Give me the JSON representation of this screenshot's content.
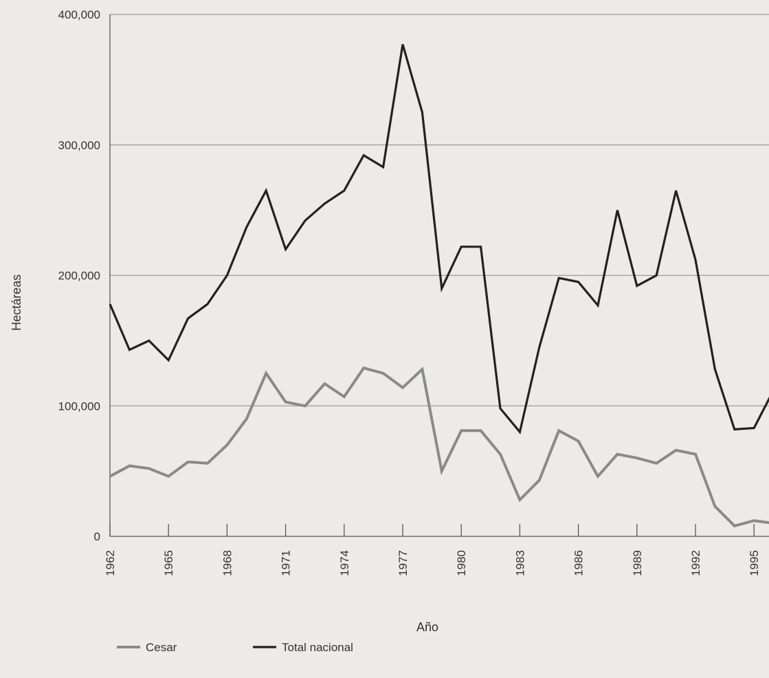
{
  "chart_data": {
    "type": "line",
    "xlabel": "Año",
    "ylabel": "Hectáreas",
    "ylim": [
      0,
      400000
    ],
    "grid": "horizontal",
    "legend_placement": "bottom-left",
    "y_ticks": [
      0,
      100000,
      200000,
      300000,
      400000
    ],
    "y_tick_labels": [
      "0",
      "100,000",
      "200,000",
      "300,000",
      "400,000"
    ],
    "x_tick_labels": [
      "1962",
      "1965",
      "1968",
      "1971",
      "1974",
      "1977",
      "1980",
      "1983",
      "1986",
      "1989",
      "1992",
      "1995"
    ],
    "x": [
      1962,
      1963,
      1964,
      1965,
      1966,
      1967,
      1968,
      1969,
      1970,
      1971,
      1972,
      1973,
      1974,
      1975,
      1976,
      1977,
      1978,
      1979,
      1980,
      1981,
      1982,
      1983,
      1984,
      1985,
      1986,
      1987,
      1988,
      1989,
      1990,
      1991,
      1992,
      1993,
      1994,
      1995,
      1996
    ],
    "series": [
      {
        "name": "Cesar",
        "color": "#8a8a8a",
        "values": [
          46000,
          54000,
          52000,
          46000,
          57000,
          56000,
          70000,
          90000,
          125000,
          103000,
          100000,
          117000,
          107000,
          129000,
          125000,
          114000,
          128000,
          50000,
          81000,
          81000,
          63000,
          28000,
          43000,
          81000,
          73000,
          46000,
          63000,
          60000,
          56000,
          66000,
          63000,
          23000,
          8000,
          12000,
          10000
        ]
      },
      {
        "name": "Total nacional",
        "color": "#222222",
        "values": [
          178000,
          143000,
          150000,
          135000,
          167000,
          178000,
          200000,
          237000,
          265000,
          220000,
          242000,
          255000,
          265000,
          292000,
          283000,
          377000,
          325000,
          190000,
          222000,
          222000,
          98000,
          80000,
          145000,
          198000,
          195000,
          177000,
          250000,
          192000,
          200000,
          265000,
          212000,
          128000,
          82000,
          83000,
          112000
        ]
      }
    ]
  }
}
